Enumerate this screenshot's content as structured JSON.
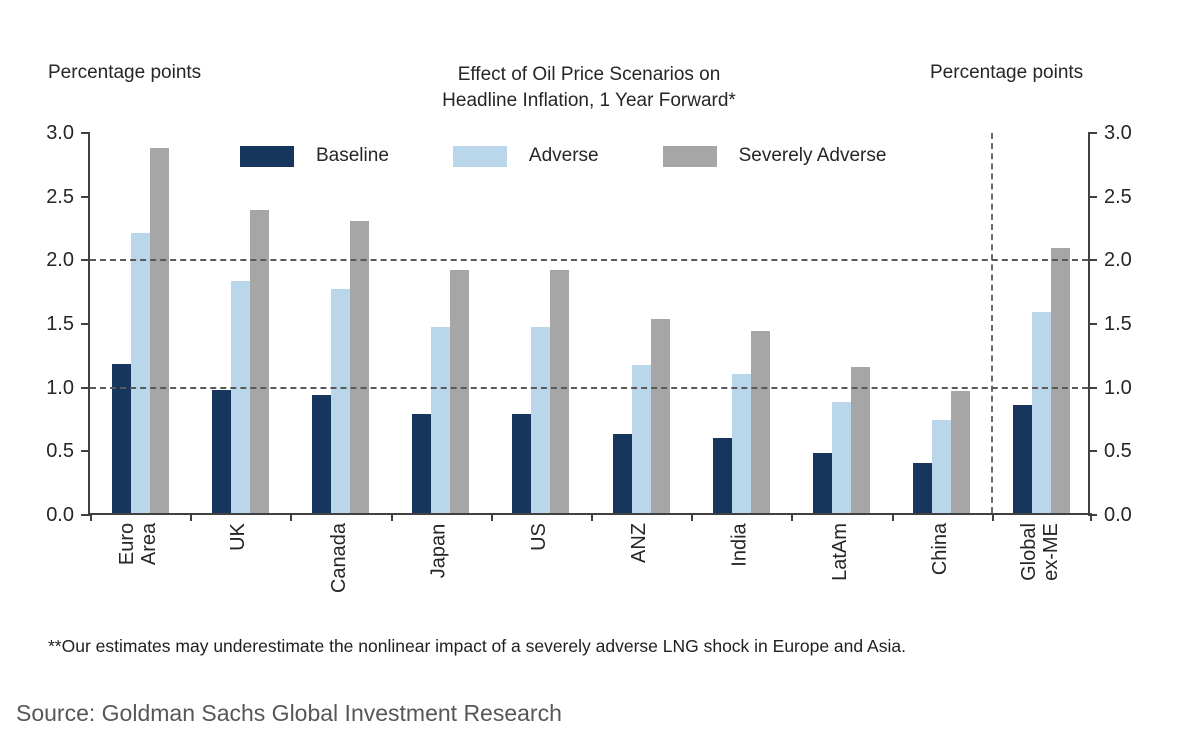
{
  "axis_units": {
    "left": "Percentage points",
    "right": "Percentage points"
  },
  "chart_data": {
    "type": "bar",
    "title": "Effect of Oil Price Scenarios on\nHeadline Inflation, 1 Year Forward*",
    "categories": [
      "Euro Area",
      "UK",
      "Canada",
      "Japan",
      "US",
      "ANZ",
      "India",
      "LatAm",
      "China",
      "Global ex-ME"
    ],
    "category_label_lines": [
      [
        "Euro",
        "Area"
      ],
      [
        "UK"
      ],
      [
        "Canada"
      ],
      [
        "Japan"
      ],
      [
        "US"
      ],
      [
        "ANZ"
      ],
      [
        "India"
      ],
      [
        "LatAm"
      ],
      [
        "China"
      ],
      [
        "Global",
        "ex-ME"
      ]
    ],
    "series": [
      {
        "name": "Baseline",
        "color": "#17365d",
        "values": [
          1.17,
          0.97,
          0.93,
          0.78,
          0.78,
          0.62,
          0.59,
          0.47,
          0.39,
          0.85
        ]
      },
      {
        "name": "Adverse",
        "color": "#b9d6ea",
        "values": [
          2.2,
          1.82,
          1.76,
          1.46,
          1.46,
          1.16,
          1.09,
          0.87,
          0.73,
          1.58
        ]
      },
      {
        "name": "Severely Adverse",
        "color": "#a6a6a6",
        "values": [
          2.87,
          2.38,
          2.29,
          1.91,
          1.91,
          1.52,
          1.43,
          1.15,
          0.96,
          2.08
        ]
      }
    ],
    "ylim": [
      0.0,
      3.0
    ],
    "yticks": [
      0.0,
      0.5,
      1.0,
      1.5,
      2.0,
      2.5,
      3.0
    ],
    "ytick_labels": [
      "0.0",
      "0.5",
      "1.0",
      "1.5",
      "2.0",
      "2.5",
      "3.0"
    ],
    "gridlines_at": [
      1.0,
      2.0
    ],
    "separator_before_category_index": 9,
    "legend_position": "top-inside",
    "grid": "dashed horizontal gridlines at 1.0 and 2.0; dashed vertical separator before last group",
    "axis_color": "#404040",
    "grid_color": "#595959",
    "text_color": "#262626"
  },
  "footnote": "**Our estimates may underestimate the nonlinear impact of a severely adverse LNG shock in Europe and Asia.",
  "source": "Source: Goldman Sachs Global Investment Research"
}
